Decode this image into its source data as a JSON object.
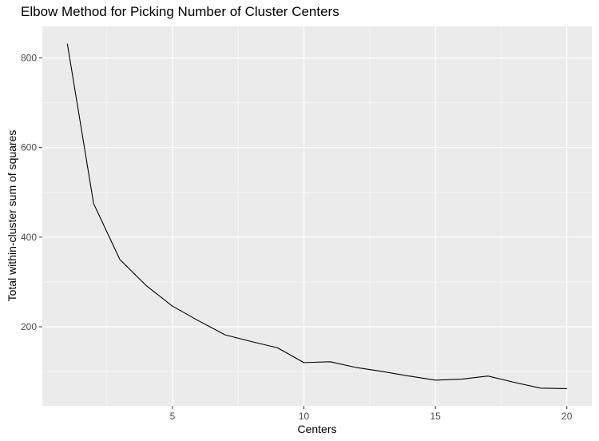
{
  "chart_data": {
    "type": "line",
    "title": "Elbow Method for Picking Number of Cluster Centers",
    "xlabel": "Centers",
    "ylabel": "Total within-cluster sum of squares",
    "x": [
      1,
      2,
      3,
      4,
      5,
      6,
      7,
      8,
      9,
      10,
      11,
      12,
      13,
      14,
      15,
      16,
      17,
      18,
      19,
      20
    ],
    "series": [
      {
        "values": [
          832,
          475,
          350,
          292,
          246,
          213,
          182,
          167,
          153,
          120,
          122,
          109,
          100,
          90,
          81,
          83,
          90,
          76,
          63,
          62
        ]
      }
    ],
    "xlim": [
      0.05,
      20.95
    ],
    "ylim": [
      23.5,
      870.5
    ],
    "xticks": [
      5,
      10,
      15,
      20
    ],
    "yticks": [
      200,
      400,
      600,
      800
    ],
    "xtick_labels": [
      "5",
      "10",
      "15",
      "20"
    ],
    "ytick_labels": [
      "200",
      "400",
      "600",
      "800"
    ],
    "grid": true,
    "legend": "none",
    "colors": {
      "panel_background": "#ebebeb",
      "grid_major": "#ffffff",
      "grid_minor": "#f5f5f5",
      "line": "#000000",
      "tick_text": "#4d4d4d",
      "axis_title": "#000000"
    }
  }
}
